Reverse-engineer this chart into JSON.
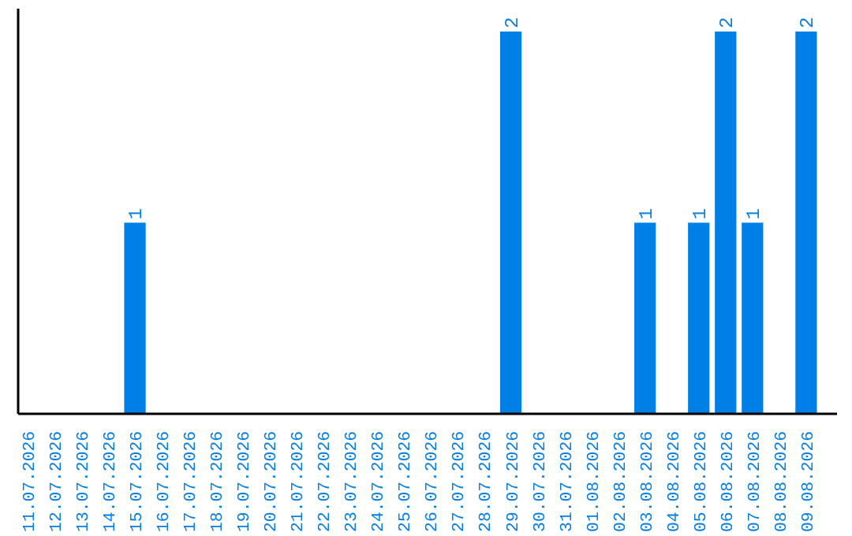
{
  "chart_data": {
    "type": "bar",
    "categories": [
      "11.07.2026",
      "12.07.2026",
      "13.07.2026",
      "14.07.2026",
      "15.07.2026",
      "16.07.2026",
      "17.07.2026",
      "18.07.2026",
      "19.07.2026",
      "20.07.2026",
      "21.07.2026",
      "22.07.2026",
      "23.07.2026",
      "24.07.2026",
      "25.07.2026",
      "26.07.2026",
      "27.07.2026",
      "28.07.2026",
      "29.07.2026",
      "30.07.2026",
      "31.07.2026",
      "01.08.2026",
      "02.08.2026",
      "03.08.2026",
      "04.08.2026",
      "05.08.2026",
      "06.08.2026",
      "07.08.2026",
      "08.08.2026",
      "09.08.2026"
    ],
    "values": [
      0,
      0,
      0,
      0,
      1,
      0,
      0,
      0,
      0,
      0,
      0,
      0,
      0,
      0,
      0,
      0,
      0,
      0,
      2,
      0,
      0,
      0,
      0,
      1,
      0,
      1,
      2,
      1,
      0,
      2
    ],
    "value_labels": [
      null,
      null,
      null,
      null,
      "1",
      null,
      null,
      null,
      null,
      null,
      null,
      null,
      null,
      null,
      null,
      null,
      null,
      null,
      "2",
      null,
      null,
      null,
      null,
      "1",
      null,
      "1",
      "2",
      "1",
      null,
      "2"
    ],
    "color": "#0080e6",
    "tick_labels": "x"
  }
}
